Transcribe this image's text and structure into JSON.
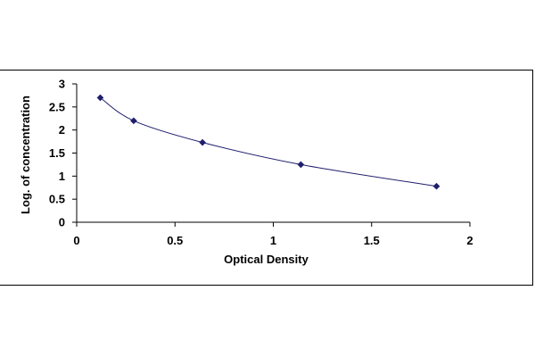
{
  "chart_data": {
    "type": "scatter",
    "title": "",
    "xlabel": "Optical Density",
    "ylabel": "Log. of concentration",
    "xlim": [
      0,
      2
    ],
    "ylim": [
      0,
      3
    ],
    "x_ticks": [
      "0",
      "0.5",
      "1",
      "1.5",
      "2"
    ],
    "y_ticks": [
      "0",
      "0.5",
      "1",
      "1.5",
      "2",
      "2.5",
      "3"
    ],
    "grid": false,
    "legend": "none",
    "series": [
      {
        "marker": "diamond",
        "trendline": "smooth curve",
        "x": [
          0.12,
          0.29,
          0.64,
          1.14,
          1.83
        ],
        "y": [
          2.7,
          2.2,
          1.73,
          1.25,
          0.78
        ]
      }
    ],
    "colors": {
      "marker": "#1f1f6e",
      "line": "#1f1f6e",
      "axis": "#000000"
    }
  }
}
